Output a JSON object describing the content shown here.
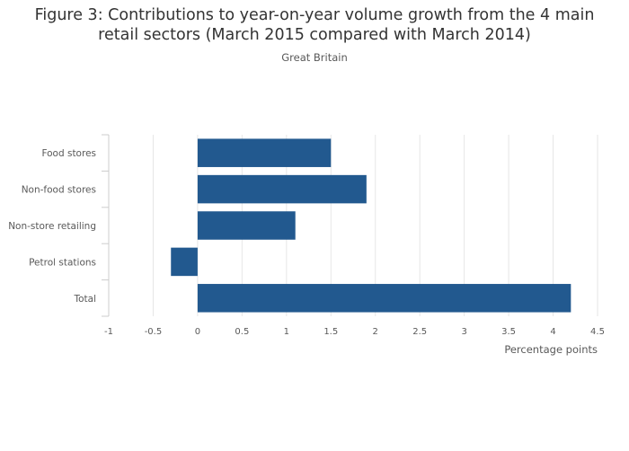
{
  "chart_data": {
    "type": "bar",
    "orientation": "horizontal",
    "title_line1": "Figure 3: Contributions to year-on-year volume growth from the 4 main",
    "title_line2": "retail sectors (March 2015 compared with March 2014)",
    "subtitle": "Great Britain",
    "categories": [
      "Food stores",
      "Non-food stores",
      "Non-store retailing",
      "Petrol stations",
      "Total"
    ],
    "values": [
      1.5,
      1.9,
      1.1,
      -0.3,
      4.2
    ],
    "xlabel": "Percentage points",
    "xlim": [
      -1,
      4.5
    ],
    "xticks": [
      "-1",
      "-0.5",
      "0",
      "0.5",
      "1",
      "1.5",
      "2",
      "2.5",
      "3",
      "3.5",
      "4",
      "4.5"
    ],
    "grid": true,
    "legend": "none",
    "bar_color": "#22598f"
  }
}
